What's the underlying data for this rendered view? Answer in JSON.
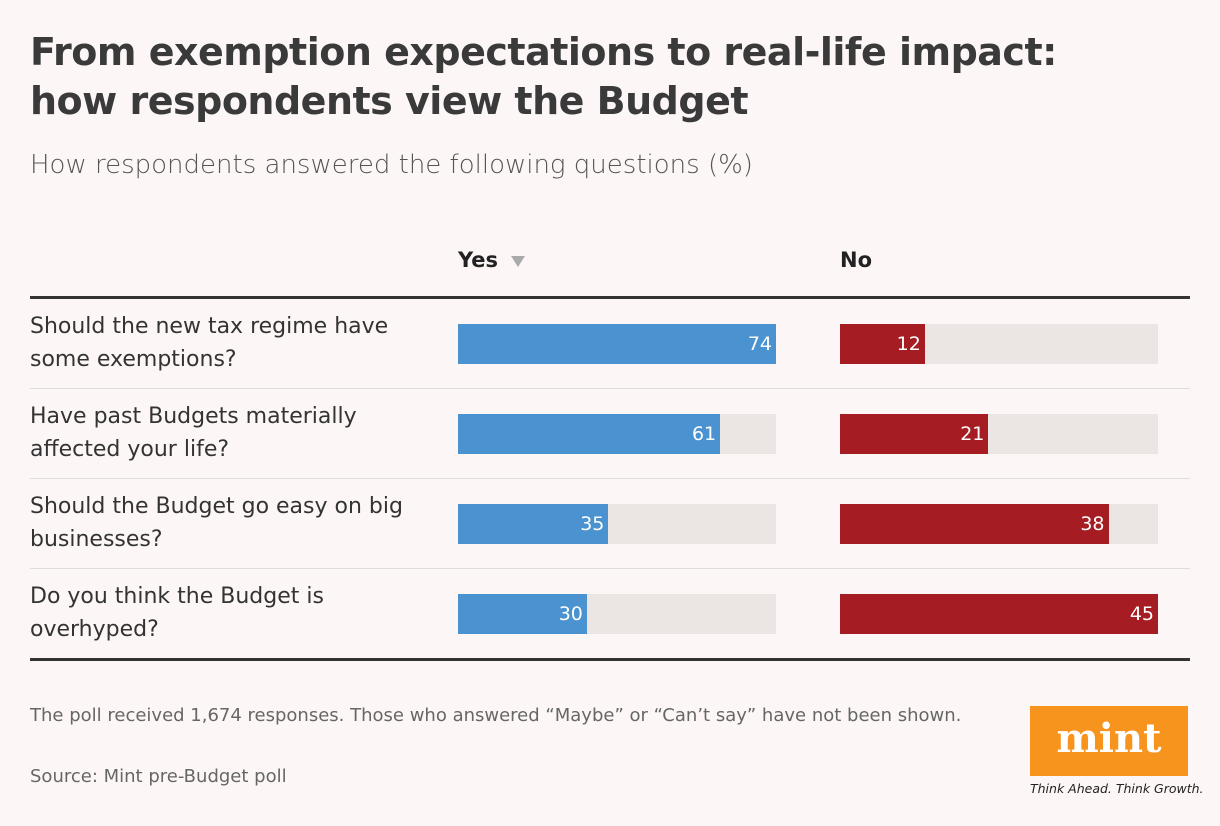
{
  "chart_data": {
    "type": "bar",
    "title": "From exemption expectations to real-life impact: how respondents view the Budget",
    "subtitle": "How respondents answered the following questions (%)",
    "categories": [
      "Should the new tax regime have some exemptions?",
      "Have past Budgets materially affected your life?",
      "Should the Budget go easy on big businesses?",
      "Do you think the Budget is overhyped?"
    ],
    "series": [
      {
        "name": "Yes",
        "color": "#4a92d0",
        "values": [
          74,
          61,
          35,
          30
        ]
      },
      {
        "name": "No",
        "color": "#a51d22",
        "values": [
          12,
          21,
          38,
          45
        ]
      }
    ]
  },
  "footer": {
    "note": "The poll received 1,674 responses. Those who answered “Maybe” or “Can’t say” have not been shown.",
    "source": "Source: Mint pre-Budget poll"
  },
  "logo": {
    "name": "mint",
    "tagline": "Think Ahead. Think Growth."
  }
}
